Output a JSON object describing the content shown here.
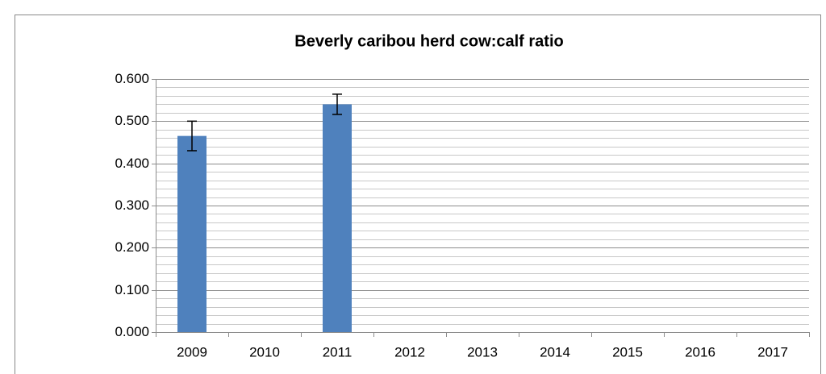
{
  "chart_data": {
    "type": "bar",
    "title": "Beverly caribou herd cow:calf ratio",
    "categories": [
      "2009",
      "2010",
      "2011",
      "2012",
      "2013",
      "2014",
      "2015",
      "2016",
      "2017"
    ],
    "values": [
      0.465,
      null,
      0.54,
      null,
      null,
      null,
      null,
      null,
      null
    ],
    "errors": [
      0.035,
      null,
      0.024,
      null,
      null,
      null,
      null,
      null,
      null
    ],
    "color": "#4f81bd",
    "ylim": [
      0,
      0.6
    ],
    "yticks": [
      {
        "value": 0,
        "label": "0.000"
      },
      {
        "value": 0.1,
        "label": "0.100"
      },
      {
        "value": 0.2,
        "label": "0.200"
      },
      {
        "value": 0.3,
        "label": "0.300"
      },
      {
        "value": 0.4,
        "label": "0.400"
      },
      {
        "value": 0.5,
        "label": "0.500"
      },
      {
        "value": 0.6,
        "label": "0.600"
      }
    ],
    "minor_yticks": [
      0.02,
      0.04,
      0.06,
      0.08,
      0.12,
      0.14,
      0.16,
      0.18,
      0.22,
      0.24,
      0.26,
      0.28,
      0.32,
      0.34,
      0.36,
      0.38,
      0.42,
      0.44,
      0.46,
      0.48,
      0.52,
      0.54,
      0.56,
      0.58
    ],
    "grid": true
  }
}
